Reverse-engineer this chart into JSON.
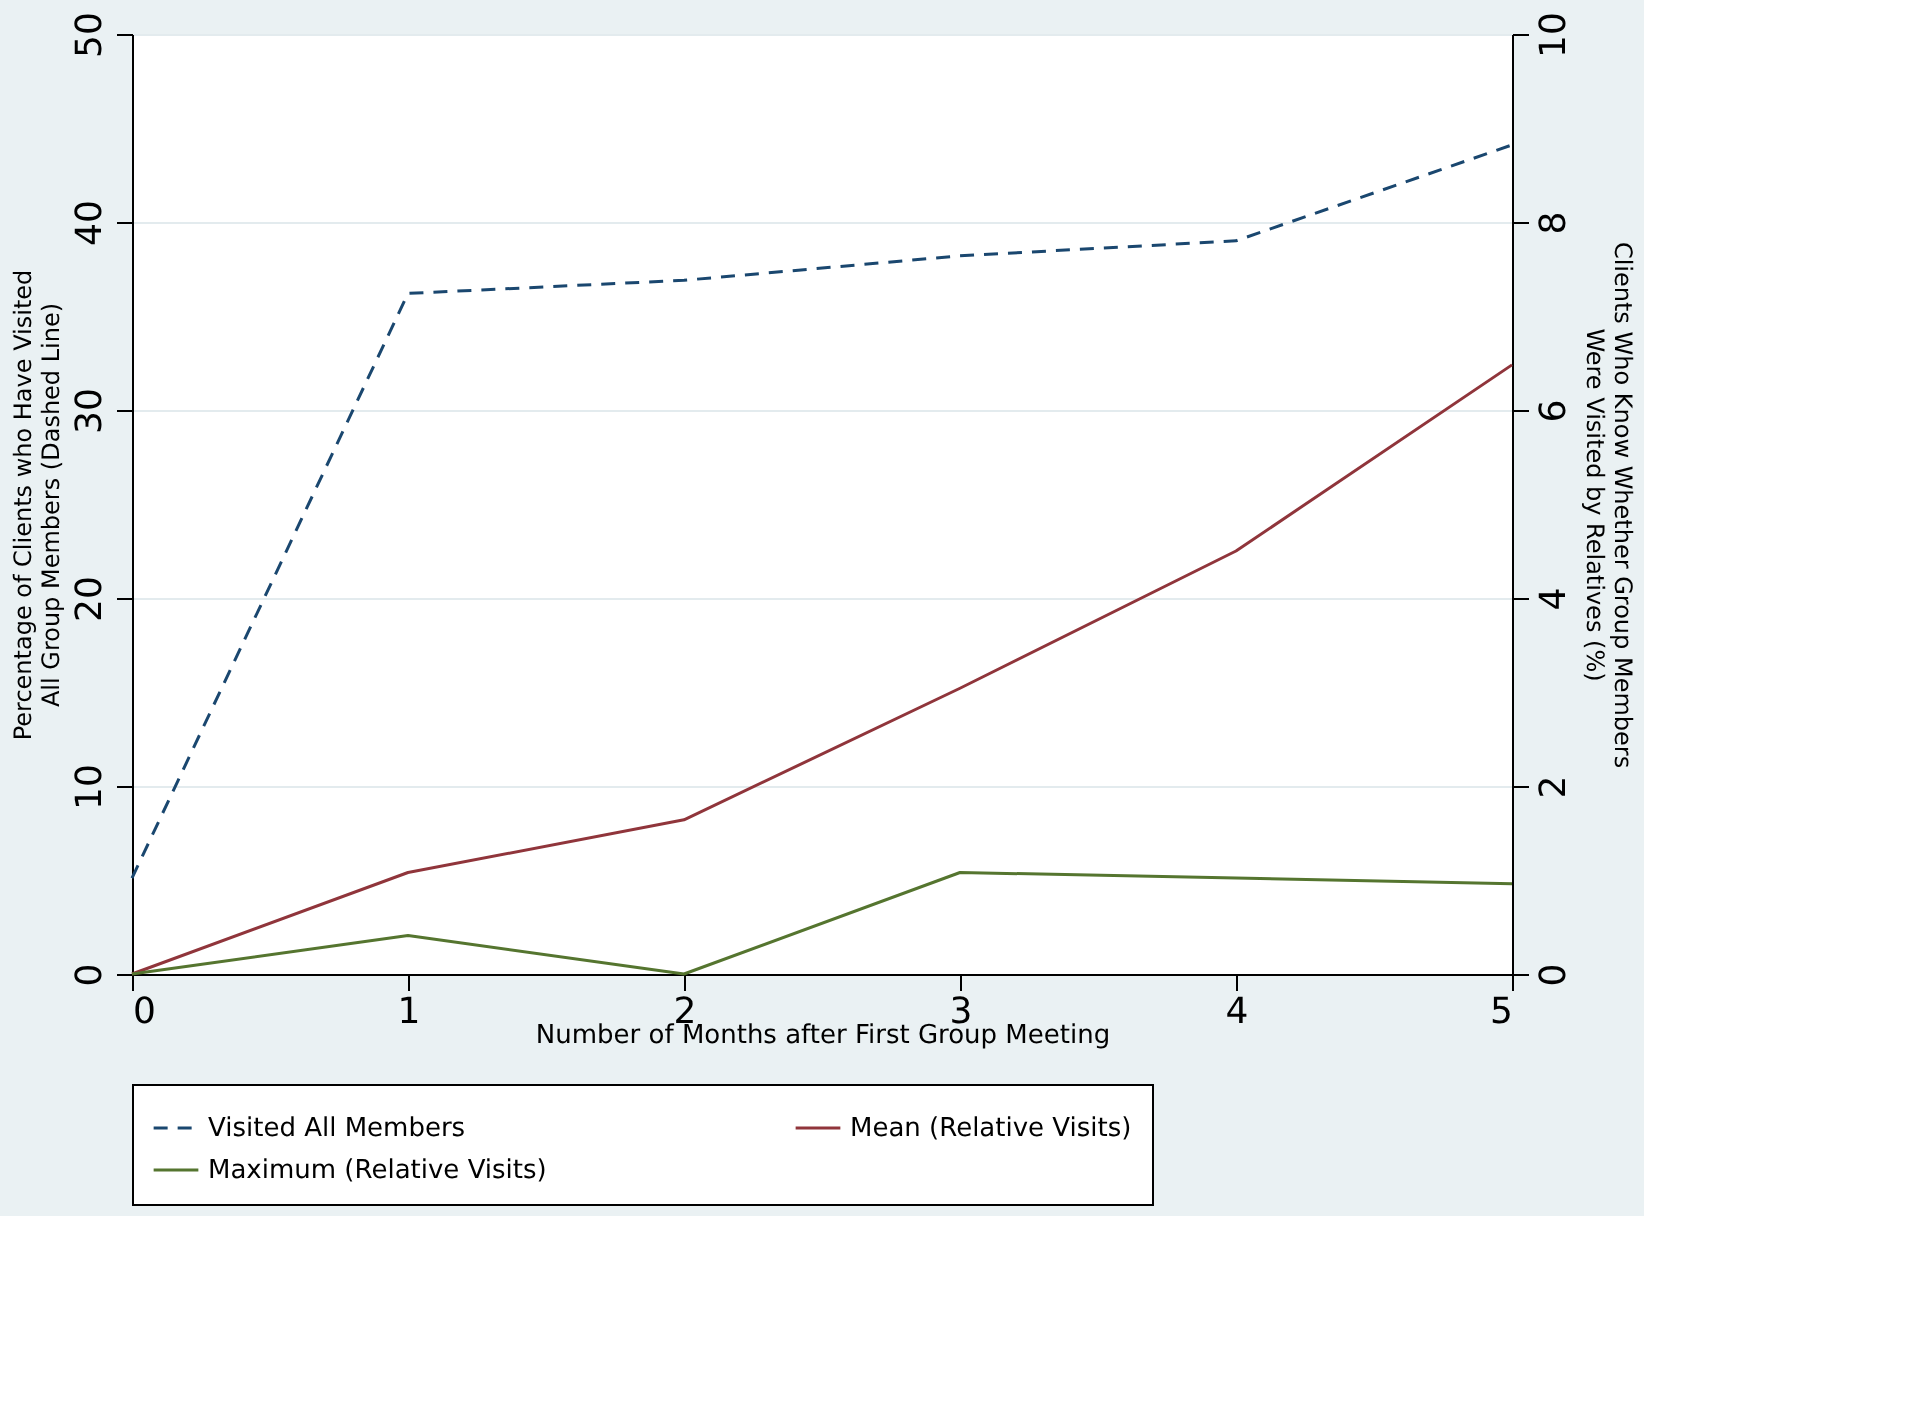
{
  "chart_data": {
    "type": "line",
    "xlabel": "Number of Months after First Group Meeting",
    "ylabel": "Percentage of Clients who Have Visited\nAll Group Members (Dashed Line)",
    "y2label": "Clients Who Know Whether Group Members\nWere Visited by Relatives (%)",
    "x": [
      0,
      1,
      2,
      3,
      4,
      5
    ],
    "xlim": [
      0,
      5
    ],
    "xticks": [
      0,
      1,
      2,
      3,
      4,
      5
    ],
    "ylim": [
      0,
      50
    ],
    "yticks": [
      0,
      10,
      20,
      30,
      40,
      50
    ],
    "y2lim": [
      0,
      10
    ],
    "y2ticks": [
      0,
      2,
      4,
      6,
      8,
      10
    ],
    "grid": "y",
    "legend": "bottom",
    "marker": "none",
    "series": [
      {
        "name": "Visited All Members",
        "color": "#1a476f",
        "line_style": "dashed",
        "values": [
          5.1,
          36.2,
          36.9,
          38.2,
          39.0,
          44.1
        ]
      },
      {
        "name": "Mean (Relative Visits)",
        "color": "#90353b",
        "line_style": "solid",
        "axis": "y2",
        "values": [
          0,
          1.08,
          1.64,
          3.04,
          4.5,
          6.48
        ]
      },
      {
        "name": "Maximum (Relative Visits)",
        "color": "#55752f",
        "line_style": "solid",
        "axis": "y2",
        "values": [
          0,
          0.41,
          0,
          1.08,
          1.02,
          0.96
        ]
      }
    ]
  }
}
